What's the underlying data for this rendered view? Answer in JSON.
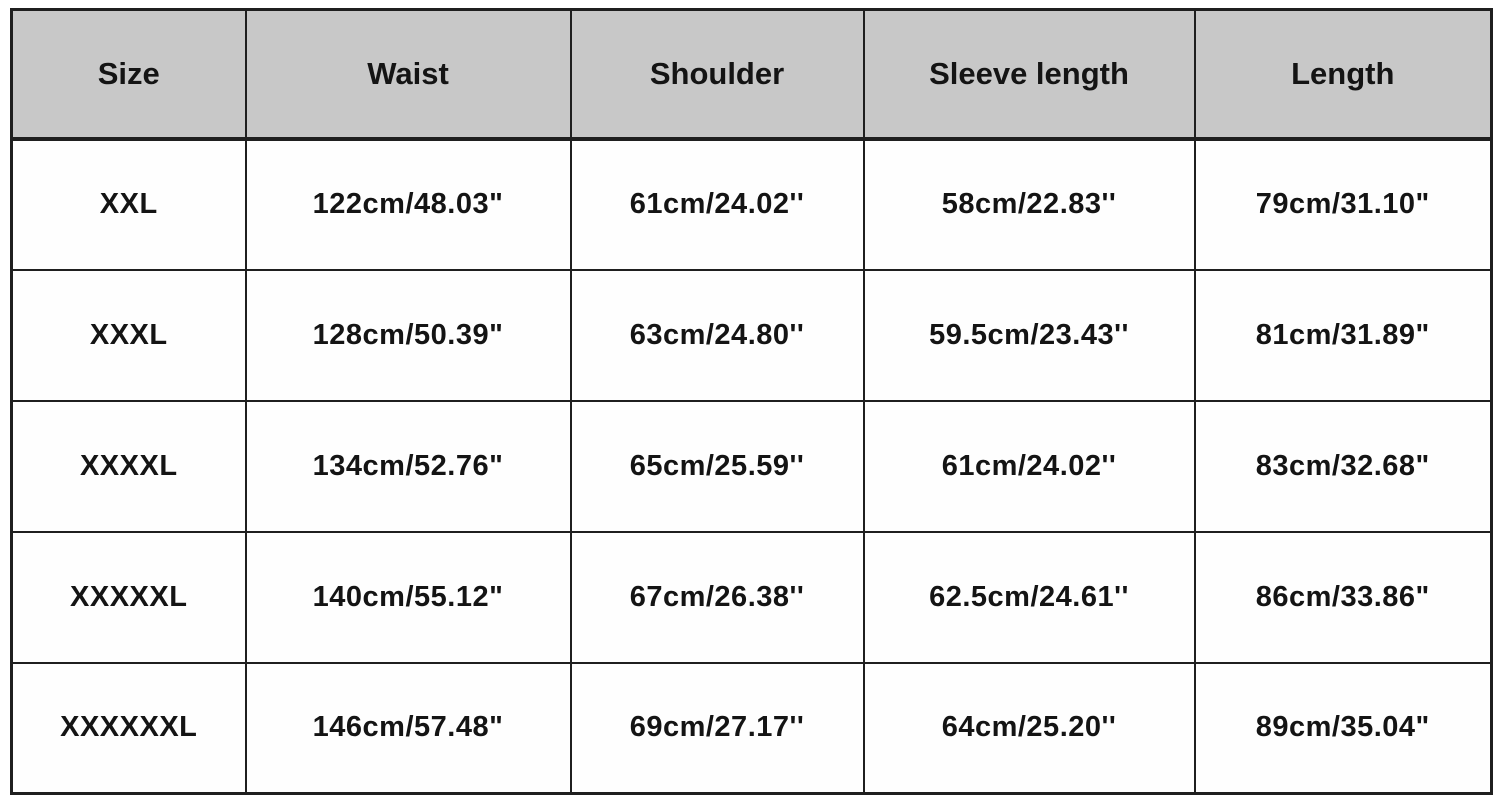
{
  "chart_data": {
    "type": "table",
    "columns": [
      "Size",
      "Waist",
      "Shoulder",
      "Sleeve length",
      "Length"
    ],
    "rows": [
      [
        "XXL",
        "122cm/48.03\"",
        "61cm/24.02''",
        "58cm/22.83''",
        "79cm/31.10\""
      ],
      [
        "XXXL",
        "128cm/50.39\"",
        "63cm/24.80''",
        "59.5cm/23.43''",
        "81cm/31.89\""
      ],
      [
        "XXXXL",
        "134cm/52.76\"",
        "65cm/25.59''",
        "61cm/24.02''",
        "83cm/32.68\""
      ],
      [
        "XXXXXL",
        "140cm/55.12\"",
        "67cm/26.38''",
        "62.5cm/24.61''",
        "86cm/33.86\""
      ],
      [
        "XXXXXXL",
        "146cm/57.48\"",
        "69cm/27.17''",
        "64cm/25.20''",
        "89cm/35.04\""
      ]
    ],
    "layout": {
      "header_position": "top",
      "grid": true,
      "units": "cm and inches"
    }
  },
  "colors": {
    "header_bg": "#c8c8c8",
    "border_color": "#1f1f1f",
    "text_color": "#141414",
    "cell_bg": "#fefefe",
    "page_bg": "#ffffff"
  }
}
